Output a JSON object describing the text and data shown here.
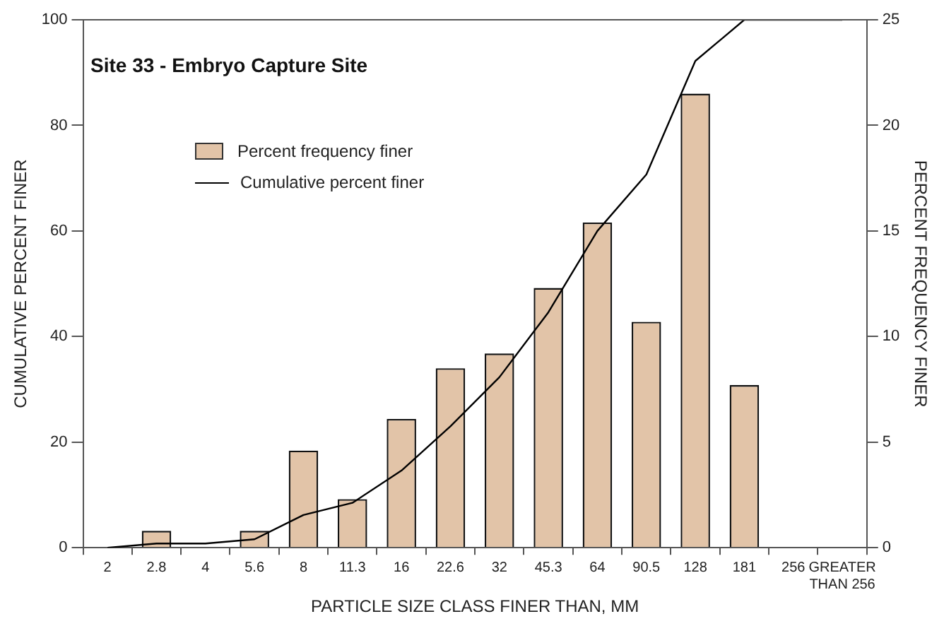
{
  "chart_data": {
    "type": "bar",
    "title": "Site 33 - Embryo Capture Site",
    "xlabel": "PARTICLE SIZE CLASS FINER THAN, MM",
    "ylabel": "CUMULATIVE PERCENT FINER",
    "y2label": "PERCENT FREQUENCY FINER",
    "categories": [
      "2",
      "2.8",
      "4",
      "5.6",
      "8",
      "11.3",
      "16",
      "22.6",
      "32",
      "45.3",
      "64",
      "90.5",
      "128",
      "181",
      "256",
      "GREATER THAN 256"
    ],
    "series": [
      {
        "name": "Percent frequency finer",
        "axis": "y2",
        "color": "#e2c4a8",
        "values": [
          0,
          0.8,
          0,
          0.8,
          4.6,
          2.3,
          6.1,
          8.5,
          9.2,
          12.3,
          15.4,
          10.7,
          21.5,
          7.7,
          0,
          0
        ]
      },
      {
        "name": "Cumulative percent finer",
        "type": "line",
        "color": "#000000",
        "values": [
          0,
          0.8,
          0.8,
          1.6,
          6.2,
          8.5,
          14.6,
          23,
          32.3,
          44.6,
          60,
          70.7,
          92.2,
          100,
          100,
          100
        ]
      }
    ],
    "ylim": [
      0,
      100
    ],
    "yticks": [
      0,
      20,
      40,
      60,
      80,
      100
    ],
    "y2lim": [
      0,
      25
    ],
    "y2ticks": [
      0,
      5,
      10,
      15,
      20,
      25
    ],
    "grid": false,
    "legend": "top left",
    "marker": "none",
    "line_style": "solid"
  }
}
